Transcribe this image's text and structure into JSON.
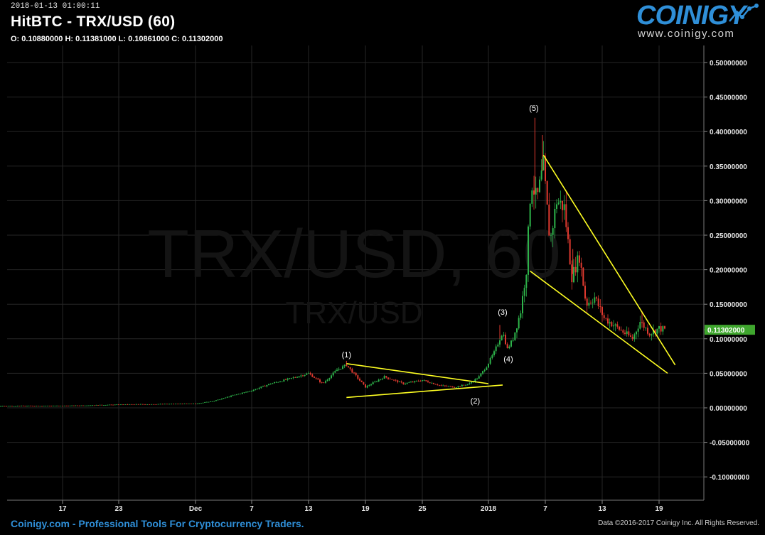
{
  "header": {
    "timestamp": "2018-01-13 01:00:11",
    "title": "HitBTC - TRX/USD (60)",
    "ohlc": "O: 0.10880000 H: 0.11381000 L: 0.10861000 C: 0.11302000"
  },
  "logo": {
    "wordmark": "COINIGY",
    "url": "www.coinigy.com",
    "icon": "line-chart-icon"
  },
  "watermark": {
    "large": "TRX/USD, 60",
    "small": "TRX/USD"
  },
  "footer": {
    "left": "Coinigy.com - Professional Tools For Cryptocurrency Traders.",
    "right": "Data ©2016-2017 Coinigy Inc. All Rights Reserved."
  },
  "chart_data": {
    "type": "candlestick",
    "x_tick_labels": [
      "17",
      "23",
      "Dec",
      "7",
      "13",
      "19",
      "25",
      "2018",
      "7",
      "13",
      "19"
    ],
    "y_tick_labels": [
      "0.50000000",
      "0.45000000",
      "0.40000000",
      "0.35000000",
      "0.30000000",
      "0.25000000",
      "0.20000000",
      "0.15000000",
      "0.10000000",
      "0.05000000",
      "0.00000000",
      "-0.05000000",
      "-0.10000000"
    ],
    "y_ticks": [
      0.5,
      0.45,
      0.4,
      0.35,
      0.3,
      0.25,
      0.2,
      0.15,
      0.1,
      0.05,
      0,
      -0.05,
      -0.1
    ],
    "ylim": [
      -0.14,
      0.535
    ],
    "last_price": 0.11302,
    "last_price_label": "0.11302000",
    "price_path": [
      {
        "day": 0,
        "price": 0.002
      },
      {
        "day": 10,
        "price": 0.002
      },
      {
        "day": 20,
        "price": 0.0025
      },
      {
        "day": 28,
        "price": 0.003
      },
      {
        "day": 34,
        "price": 0.005
      },
      {
        "day": 40,
        "price": 0.006
      },
      {
        "day": 42,
        "price": 0.01
      },
      {
        "day": 44,
        "price": 0.018
      },
      {
        "day": 46,
        "price": 0.025
      },
      {
        "day": 48,
        "price": 0.035
      },
      {
        "day": 50,
        "price": 0.042
      },
      {
        "day": 52,
        "price": 0.05
      },
      {
        "day": 53.5,
        "price": 0.035
      },
      {
        "day": 55,
        "price": 0.055
      },
      {
        "day": 56,
        "price": 0.062
      },
      {
        "day": 58,
        "price": 0.03
      },
      {
        "day": 60,
        "price": 0.045
      },
      {
        "day": 62,
        "price": 0.035
      },
      {
        "day": 64,
        "price": 0.04
      },
      {
        "day": 66,
        "price": 0.032
      },
      {
        "day": 67.5,
        "price": 0.03
      },
      {
        "day": 69,
        "price": 0.035
      },
      {
        "day": 70,
        "price": 0.045
      },
      {
        "day": 70.8,
        "price": 0.06
      },
      {
        "day": 71.6,
        "price": 0.08
      },
      {
        "day": 72.5,
        "price": 0.11
      },
      {
        "day": 73,
        "price": 0.085
      },
      {
        "day": 73.6,
        "price": 0.1
      },
      {
        "day": 74.4,
        "price": 0.14
      },
      {
        "day": 75,
        "price": 0.2
      },
      {
        "day": 75.5,
        "price": 0.33
      },
      {
        "day": 76.1,
        "price": 0.3
      },
      {
        "day": 76.8,
        "price": 0.35
      },
      {
        "day": 77.5,
        "price": 0.24
      },
      {
        "day": 78.2,
        "price": 0.3
      },
      {
        "day": 79,
        "price": 0.29
      },
      {
        "day": 79.8,
        "price": 0.19
      },
      {
        "day": 80.6,
        "price": 0.22
      },
      {
        "day": 81.3,
        "price": 0.15
      },
      {
        "day": 82.2,
        "price": 0.16
      },
      {
        "day": 83.2,
        "price": 0.13
      },
      {
        "day": 84.2,
        "price": 0.12
      },
      {
        "day": 85.2,
        "price": 0.11
      },
      {
        "day": 86.2,
        "price": 0.1
      },
      {
        "day": 87,
        "price": 0.125
      },
      {
        "day": 88,
        "price": 0.108
      },
      {
        "day": 89,
        "price": 0.115
      },
      {
        "day": 89.7,
        "price": 0.113
      }
    ],
    "spikes": [
      {
        "day": 75.9,
        "high": 0.42
      },
      {
        "day": 76.7,
        "high": 0.395
      },
      {
        "day": 72.2,
        "high": 0.12
      },
      {
        "day": 56,
        "high": 0.068
      },
      {
        "day": 79.9,
        "high": 0.23
      },
      {
        "day": 87.2,
        "high": 0.14
      }
    ],
    "annotations": [
      {
        "text": "(1)",
        "day": 56,
        "price": 0.073
      },
      {
        "text": "(2)",
        "day": 69.6,
        "price": 0.006
      },
      {
        "text": "(3)",
        "day": 72.5,
        "price": 0.135
      },
      {
        "text": "(4)",
        "day": 73.1,
        "price": 0.067
      },
      {
        "text": "(5)",
        "day": 75.8,
        "price": 0.43
      }
    ],
    "trendlines": [
      {
        "from": {
          "day": 56,
          "price": 0.064
        },
        "to": {
          "day": 71,
          "price": 0.035
        }
      },
      {
        "from": {
          "day": 56,
          "price": 0.015
        },
        "to": {
          "day": 72.5,
          "price": 0.033
        }
      },
      {
        "from": {
          "day": 76.8,
          "price": 0.366
        },
        "to": {
          "day": 90.7,
          "price": 0.062
        }
      },
      {
        "from": {
          "day": 75.4,
          "price": 0.198
        },
        "to": {
          "day": 89.9,
          "price": 0.05
        }
      }
    ],
    "colors": {
      "up": "#2db34a",
      "down": "#e03a2f",
      "trendline": "#ffff22",
      "last_price_badge": "#3fa62e",
      "grid": "#262626"
    }
  }
}
